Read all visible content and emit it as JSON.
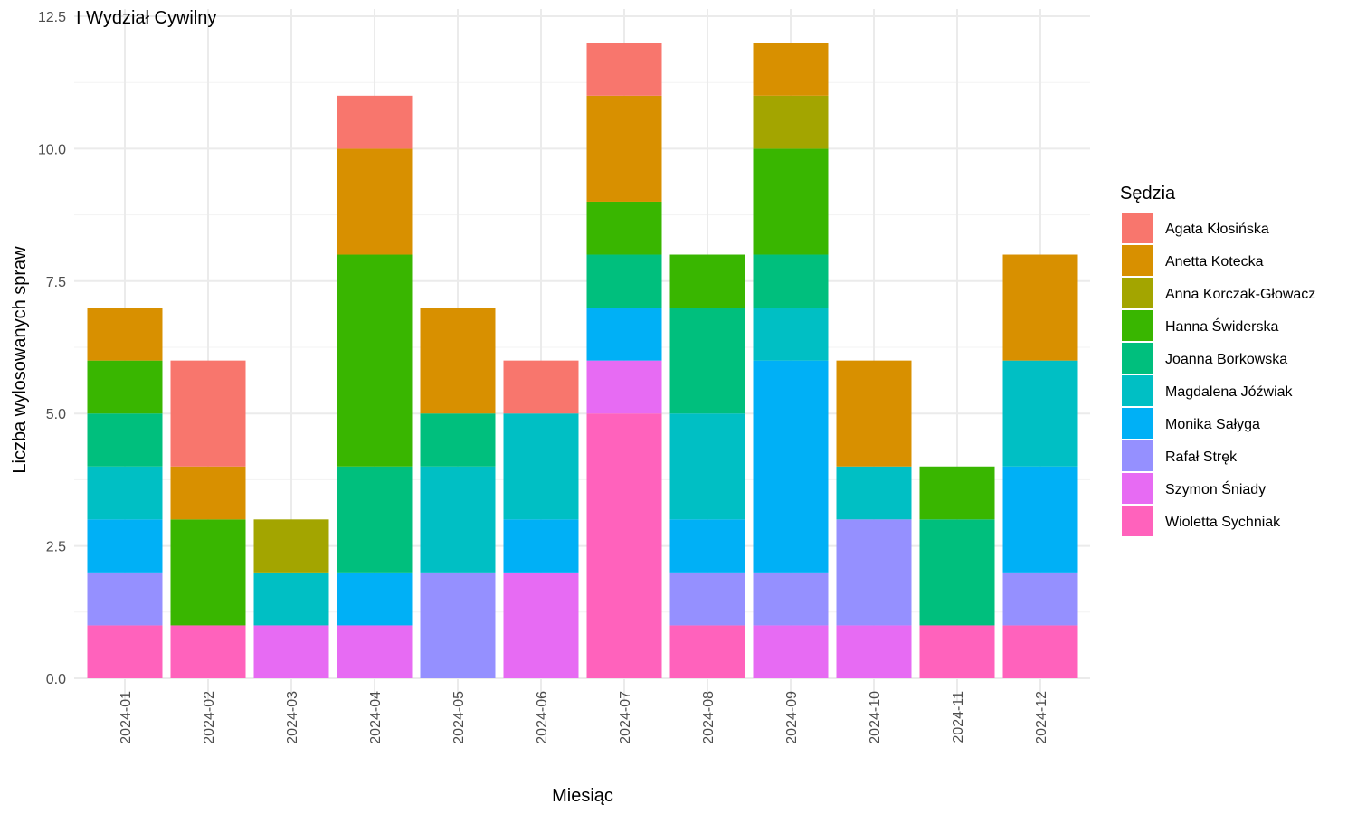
{
  "chart_data": {
    "type": "bar",
    "stacked": true,
    "title": "I Wydział Cywilny",
    "xlabel": "Miesiąc",
    "ylabel": "Liczba wylosowanych spraw",
    "ylim": [
      0,
      12.5
    ],
    "yticks": [
      "0.0",
      "2.5",
      "5.0",
      "7.5",
      "10.0",
      "12.5"
    ],
    "grid": true,
    "legend_title": "Sędzia",
    "legend_position": "right",
    "categories": [
      "2024-01",
      "2024-02",
      "2024-03",
      "2024-04",
      "2024-05",
      "2024-06",
      "2024-07",
      "2024-08",
      "2024-09",
      "2024-10",
      "2024-11",
      "2024-12"
    ],
    "series": [
      {
        "name": "Agata Kłosińska",
        "color": "#F8766D",
        "values": [
          0,
          2,
          0,
          1,
          0,
          1,
          1,
          0,
          0,
          0,
          0,
          0
        ]
      },
      {
        "name": "Anetta Kotecka",
        "color": "#D89000",
        "values": [
          1,
          1,
          0,
          2,
          2,
          0,
          2,
          0,
          1,
          2,
          0,
          2
        ]
      },
      {
        "name": "Anna Korczak-Głowacz",
        "color": "#A3A500",
        "values": [
          0,
          0,
          1,
          0,
          0,
          0,
          0,
          0,
          1,
          0,
          0,
          0
        ]
      },
      {
        "name": "Hanna Świderska",
        "color": "#39B600",
        "values": [
          1,
          2,
          0,
          4,
          0,
          0,
          1,
          1,
          2,
          0,
          1,
          0
        ]
      },
      {
        "name": "Joanna Borkowska",
        "color": "#00BF7D",
        "values": [
          1,
          0,
          0,
          2,
          1,
          0,
          1,
          2,
          1,
          0,
          2,
          0
        ]
      },
      {
        "name": "Magdalena Jóźwiak",
        "color": "#00BFC4",
        "values": [
          1,
          0,
          1,
          0,
          2,
          2,
          0,
          2,
          1,
          1,
          0,
          2
        ]
      },
      {
        "name": "Monika Sałyga",
        "color": "#00B0F6",
        "values": [
          1,
          0,
          0,
          1,
          0,
          1,
          1,
          1,
          4,
          0,
          0,
          2
        ]
      },
      {
        "name": "Rafał Stręk",
        "color": "#9590FF",
        "values": [
          1,
          0,
          0,
          0,
          2,
          0,
          0,
          1,
          1,
          2,
          0,
          1
        ]
      },
      {
        "name": "Szymon Śniady",
        "color": "#E76BF3",
        "values": [
          0,
          0,
          1,
          1,
          0,
          2,
          1,
          0,
          1,
          1,
          0,
          0
        ]
      },
      {
        "name": "Wioletta Sychniak",
        "color": "#FF62BC",
        "values": [
          1,
          1,
          0,
          0,
          0,
          0,
          5,
          1,
          0,
          0,
          1,
          1
        ]
      }
    ]
  }
}
